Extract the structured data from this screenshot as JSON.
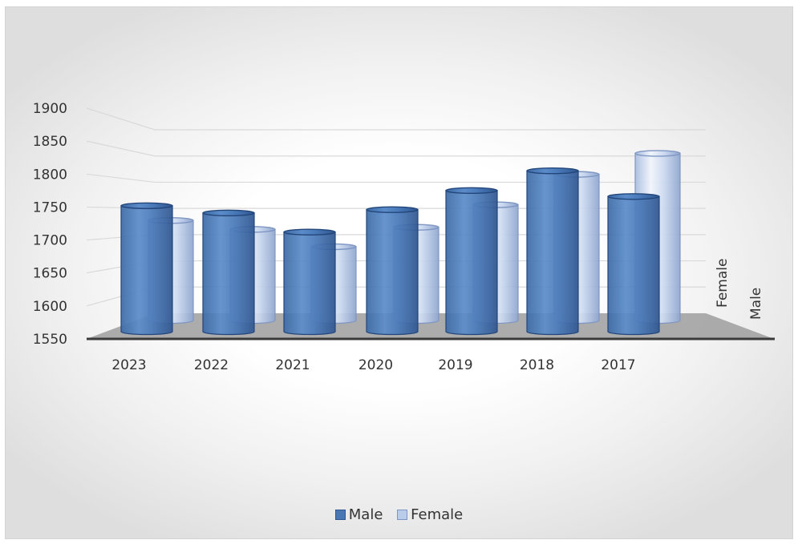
{
  "chart_data": {
    "type": "bar",
    "variant": "3d-cylinder",
    "categories": [
      "2023",
      "2022",
      "2021",
      "2020",
      "2019",
      "2018",
      "2017"
    ],
    "series": [
      {
        "name": "Male",
        "values": [
          1752,
          1741,
          1712,
          1746,
          1775,
          1805,
          1766
        ],
        "color": "#4a77b4"
      },
      {
        "name": "Female",
        "values": [
          1727,
          1710,
          1677,
          1714,
          1757,
          1815,
          1855
        ],
        "color": "#b9cdeb"
      }
    ],
    "ylim": [
      1550,
      1900
    ],
    "yticks": [
      1550,
      1600,
      1650,
      1700,
      1750,
      1800,
      1850,
      1900
    ],
    "depth_axis_labels": [
      "Female",
      "Male"
    ],
    "grid": true,
    "legend_position": "bottom"
  }
}
